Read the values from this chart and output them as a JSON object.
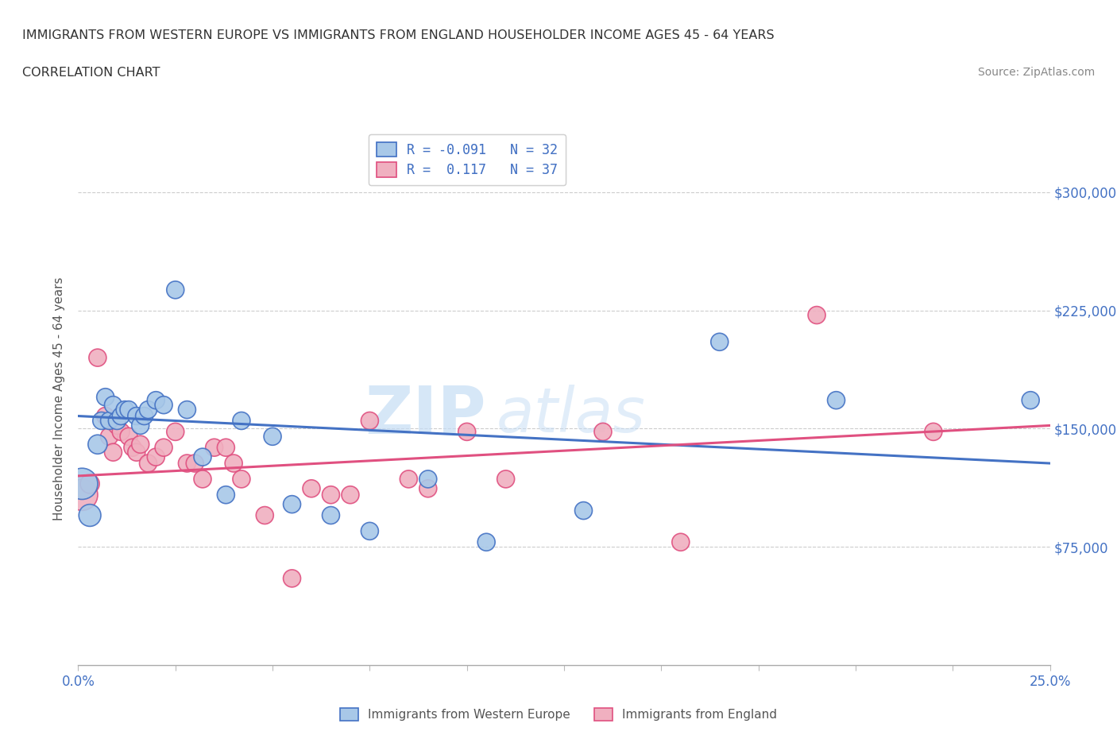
{
  "title_line1": "IMMIGRANTS FROM WESTERN EUROPE VS IMMIGRANTS FROM ENGLAND HOUSEHOLDER INCOME AGES 45 - 64 YEARS",
  "title_line2": "CORRELATION CHART",
  "source_text": "Source: ZipAtlas.com",
  "ylabel": "Householder Income Ages 45 - 64 years",
  "xlim": [
    0.0,
    0.25
  ],
  "ylim": [
    0,
    337500
  ],
  "yticks": [
    75000,
    150000,
    225000,
    300000
  ],
  "ytick_labels": [
    "$75,000",
    "$150,000",
    "$225,000",
    "$300,000"
  ],
  "xticks": [
    0.0,
    0.025,
    0.05,
    0.075,
    0.1,
    0.125,
    0.15,
    0.175,
    0.2,
    0.225,
    0.25
  ],
  "color_blue": "#A8C8E8",
  "color_pink": "#F0B0C0",
  "line_color_blue": "#4472C4",
  "line_color_pink": "#E05080",
  "watermark_zip": "ZIP",
  "watermark_atlas": "atlas",
  "blue_x": [
    0.001,
    0.003,
    0.005,
    0.006,
    0.007,
    0.008,
    0.009,
    0.01,
    0.011,
    0.012,
    0.013,
    0.015,
    0.016,
    0.017,
    0.018,
    0.02,
    0.022,
    0.025,
    0.028,
    0.032,
    0.038,
    0.042,
    0.05,
    0.055,
    0.065,
    0.075,
    0.09,
    0.105,
    0.13,
    0.165,
    0.195,
    0.245
  ],
  "blue_y": [
    115000,
    95000,
    140000,
    155000,
    170000,
    155000,
    165000,
    155000,
    158000,
    162000,
    162000,
    158000,
    152000,
    158000,
    162000,
    168000,
    165000,
    238000,
    162000,
    132000,
    108000,
    155000,
    145000,
    102000,
    95000,
    85000,
    118000,
    78000,
    98000,
    205000,
    168000,
    168000
  ],
  "blue_sizes": [
    800,
    400,
    300,
    250,
    250,
    250,
    250,
    250,
    250,
    250,
    250,
    250,
    250,
    250,
    250,
    250,
    250,
    250,
    250,
    250,
    250,
    250,
    250,
    250,
    250,
    250,
    250,
    250,
    250,
    250,
    250,
    250
  ],
  "pink_x": [
    0.001,
    0.003,
    0.005,
    0.007,
    0.008,
    0.009,
    0.01,
    0.011,
    0.013,
    0.014,
    0.015,
    0.016,
    0.018,
    0.02,
    0.022,
    0.025,
    0.028,
    0.03,
    0.032,
    0.035,
    0.038,
    0.04,
    0.042,
    0.048,
    0.055,
    0.06,
    0.065,
    0.07,
    0.075,
    0.085,
    0.09,
    0.1,
    0.11,
    0.135,
    0.155,
    0.19,
    0.22
  ],
  "pink_y": [
    108000,
    115000,
    195000,
    158000,
    145000,
    135000,
    152000,
    148000,
    145000,
    138000,
    135000,
    140000,
    128000,
    132000,
    138000,
    148000,
    128000,
    128000,
    118000,
    138000,
    138000,
    128000,
    118000,
    95000,
    55000,
    112000,
    108000,
    108000,
    155000,
    118000,
    112000,
    148000,
    118000,
    148000,
    78000,
    222000,
    148000
  ],
  "pink_sizes": [
    800,
    300,
    250,
    250,
    250,
    250,
    250,
    250,
    250,
    250,
    250,
    250,
    250,
    250,
    250,
    250,
    250,
    250,
    250,
    250,
    250,
    250,
    250,
    250,
    250,
    250,
    250,
    250,
    250,
    250,
    250,
    250,
    250,
    250,
    250,
    250,
    250
  ],
  "blue_trend_y0": 158000,
  "blue_trend_y1": 128000,
  "pink_trend_y0": 120000,
  "pink_trend_y1": 152000
}
